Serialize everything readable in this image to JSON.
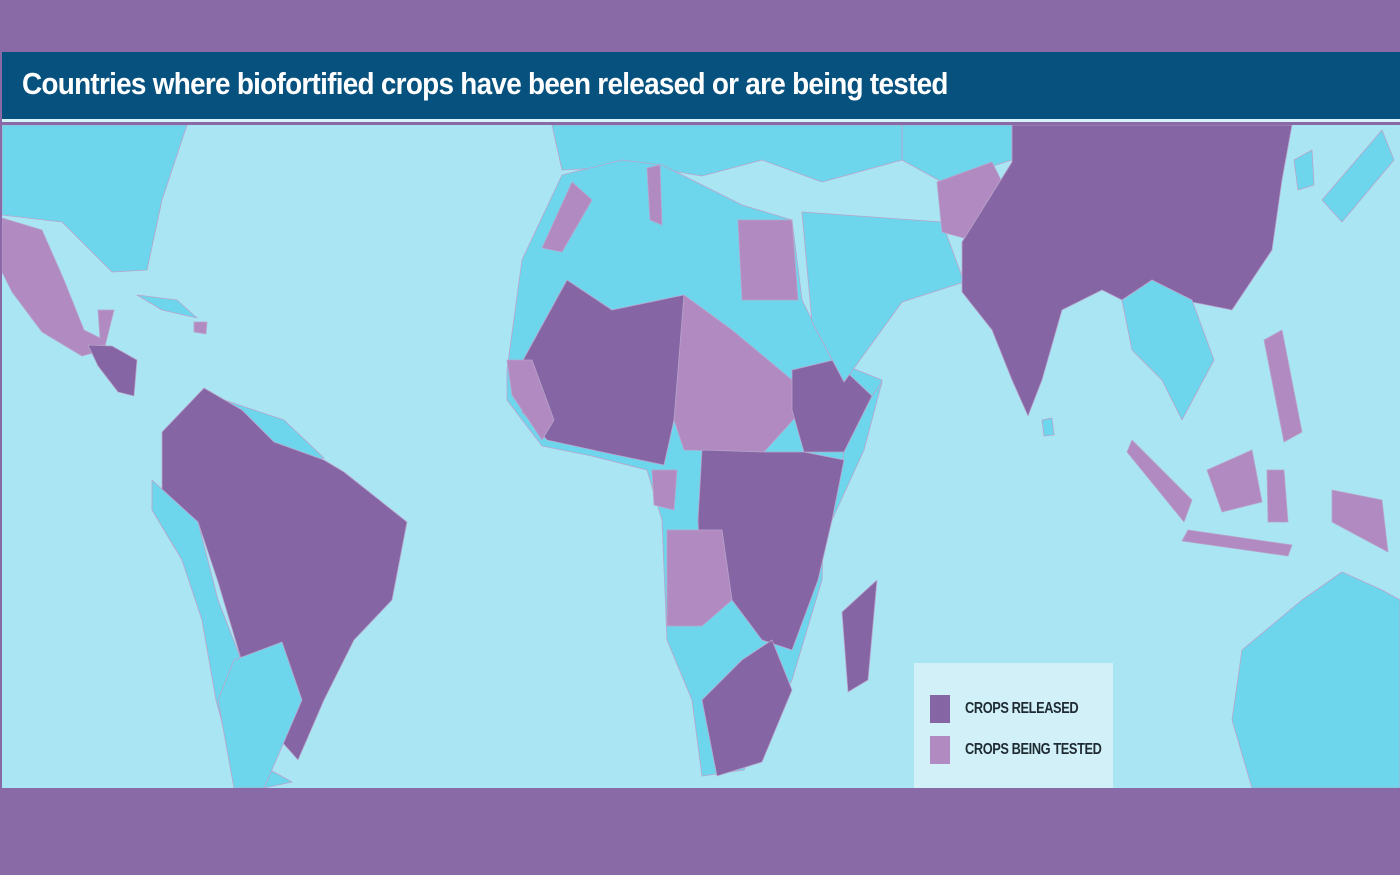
{
  "title": "Countries where biofortified crops have been released or are being tested",
  "legend": {
    "items": [
      {
        "label": "CROPS RELEASED",
        "color": "#8565a3"
      },
      {
        "label": "CROPS BEING TESTED",
        "color": "#b08ac0"
      }
    ]
  },
  "colors": {
    "frame": "#8a6aa6",
    "title_bar": "#07517f",
    "ocean": "#a9e5f3",
    "other_land": "#6dd6ec",
    "released": "#8565a3",
    "tested": "#b08ac0"
  }
}
